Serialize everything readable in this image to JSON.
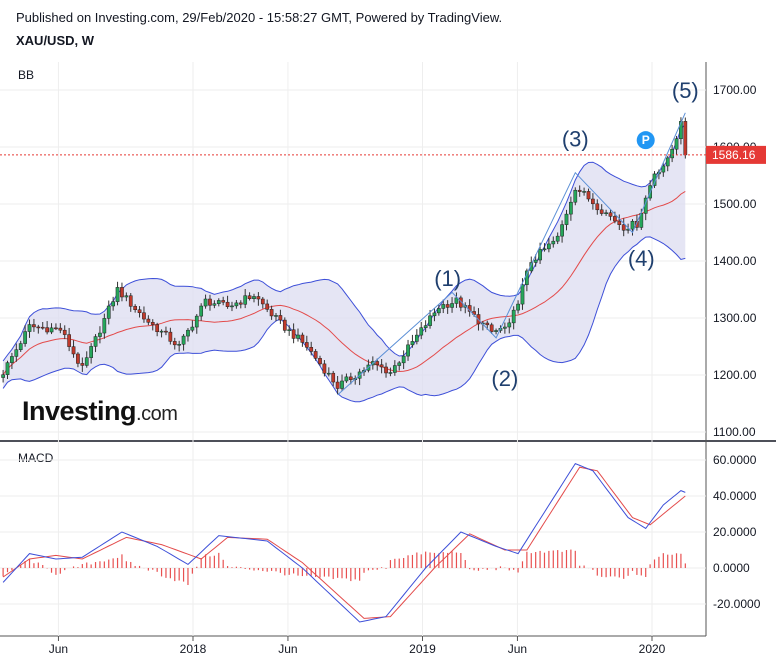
{
  "header": {
    "published": "Published on Investing.com, 29/Feb/2020 - 15:58:27 GMT, Powered by TradingView.",
    "symbol": "XAU/USD, W"
  },
  "logo": {
    "main": "Investing",
    "suffix": ".com"
  },
  "colors": {
    "up": "#26a65b",
    "down": "#c0392b",
    "bb_band": "#3d4fd8",
    "bb_fill": "#dcdcf0",
    "bb_mid": "#e34b4b",
    "macd": "#3d4fd8",
    "signal": "#e34b4b",
    "hist": "#e85050",
    "price_line": "#e53935",
    "wave": "#1f3f6e",
    "marker": "#2196f3"
  },
  "chart_data": [
    {
      "type": "candlestick",
      "title": "BB",
      "ylim": [
        1085,
        1735
      ],
      "y_ticks": [
        "1700.00",
        "1600.00",
        "1500.00",
        "1400.00",
        "1300.00",
        "1200.00",
        "1100.00"
      ],
      "x_ticks": [
        "Jun",
        "2018",
        "Jun",
        "2019",
        "Jun",
        "2020"
      ],
      "current_price": "1586.16",
      "marker": "P",
      "wave_labels": [
        "(1)",
        "(2)",
        "(3)",
        "(4)",
        "(5)"
      ],
      "close_anchors": [
        [
          "2017-03-05",
          1205
        ],
        [
          "2017-04-16",
          1285
        ],
        [
          "2017-06-04",
          1280
        ],
        [
          "2017-07-09",
          1210
        ],
        [
          "2017-09-03",
          1350
        ],
        [
          "2017-10-15",
          1300
        ],
        [
          "2017-12-10",
          1250
        ],
        [
          "2018-01-21",
          1330
        ],
        [
          "2018-02-25",
          1320
        ],
        [
          "2018-04-08",
          1340
        ],
        [
          "2018-05-20",
          1290
        ],
        [
          "2018-07-01",
          1250
        ],
        [
          "2018-08-19",
          1180
        ],
        [
          "2018-10-14",
          1220
        ],
        [
          "2018-11-11",
          1205
        ],
        [
          "2019-01-27",
          1320
        ],
        [
          "2019-02-24",
          1330
        ],
        [
          "2019-04-21",
          1275
        ],
        [
          "2019-05-19",
          1285
        ],
        [
          "2019-06-23",
          1400
        ],
        [
          "2019-08-04",
          1440
        ],
        [
          "2019-09-01",
          1530
        ],
        [
          "2019-10-13",
          1490
        ],
        [
          "2019-11-17",
          1460
        ],
        [
          "2019-12-08",
          1465
        ],
        [
          "2020-01-05",
          1555
        ],
        [
          "2020-01-26",
          1575
        ],
        [
          "2020-02-16",
          1640
        ],
        [
          "2020-02-23",
          1586
        ]
      ]
    },
    {
      "type": "line",
      "title": "MACD",
      "ylim": [
        -35,
        68
      ],
      "y_ticks": [
        "60.0000",
        "40.0000",
        "20.0000",
        "0.0000",
        "-20.0000"
      ],
      "macd_anchors": [
        [
          "2017-03-05",
          -8
        ],
        [
          "2017-04-16",
          8
        ],
        [
          "2017-05-28",
          5
        ],
        [
          "2017-07-09",
          6
        ],
        [
          "2017-09-10",
          20
        ],
        [
          "2017-11-05",
          12
        ],
        [
          "2017-12-24",
          2
        ],
        [
          "2018-02-11",
          18
        ],
        [
          "2018-04-29",
          15
        ],
        [
          "2018-06-24",
          0
        ],
        [
          "2018-09-23",
          -30
        ],
        [
          "2018-11-04",
          -27
        ],
        [
          "2019-01-06",
          0
        ],
        [
          "2019-03-03",
          20
        ],
        [
          "2019-04-28",
          12
        ],
        [
          "2019-06-02",
          8
        ],
        [
          "2019-09-01",
          58
        ],
        [
          "2019-09-29",
          54
        ],
        [
          "2019-11-24",
          28
        ],
        [
          "2019-12-22",
          22
        ],
        [
          "2020-01-19",
          35
        ],
        [
          "2020-02-16",
          43
        ],
        [
          "2020-02-23",
          42
        ]
      ],
      "signal_anchors": [
        [
          "2017-03-05",
          -5
        ],
        [
          "2017-04-16",
          5
        ],
        [
          "2017-05-28",
          7
        ],
        [
          "2017-07-09",
          5
        ],
        [
          "2017-09-17",
          17
        ],
        [
          "2017-11-12",
          13
        ],
        [
          "2018-01-14",
          5
        ],
        [
          "2018-02-25",
          17
        ],
        [
          "2018-04-29",
          16
        ],
        [
          "2018-06-24",
          3
        ],
        [
          "2018-09-30",
          -28
        ],
        [
          "2018-11-11",
          -27
        ],
        [
          "2019-01-20",
          0
        ],
        [
          "2019-03-17",
          19
        ],
        [
          "2019-05-12",
          10
        ],
        [
          "2019-06-16",
          10
        ],
        [
          "2019-09-08",
          56
        ],
        [
          "2019-10-06",
          54
        ],
        [
          "2019-12-01",
          28
        ],
        [
          "2019-12-29",
          24
        ],
        [
          "2020-01-26",
          32
        ],
        [
          "2020-02-23",
          40
        ]
      ]
    }
  ]
}
